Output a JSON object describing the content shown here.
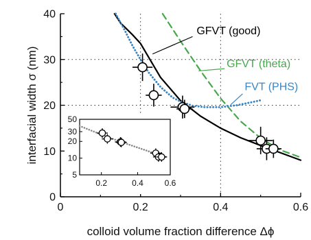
{
  "chart_data": {
    "type": "scatter",
    "xlabel": "colloid volume fraction difference Δϕ",
    "ylabel": "interfacial width σ (nm)",
    "xlim": [
      0,
      0.6
    ],
    "ylim": [
      0,
      40
    ],
    "xticks": [
      "0",
      "0.2",
      "0.4",
      "0.6"
    ],
    "yticks": [
      "0",
      "10",
      "20",
      "30",
      "40"
    ],
    "grid": "dotted guide lines at x = 0.2 and x = 0.4; y = 20 and y = 30",
    "series": [
      {
        "name": "",
        "kind": "points",
        "points": [
          {
            "x": 0.205,
            "y": 28.3,
            "xerr": 0.025,
            "yerr": 3.0
          },
          {
            "x": 0.233,
            "y": 22.2,
            "xerr": 0.02,
            "yerr": 2.5
          },
          {
            "x": 0.305,
            "y": 19.6,
            "xerr": 0.03,
            "yerr": 2.5
          },
          {
            "x": 0.31,
            "y": 19.2,
            "xerr": 0.02,
            "yerr": 2.0
          },
          {
            "x": 0.5,
            "y": 12.3,
            "xerr": 0.03,
            "yerr": 3.0
          },
          {
            "x": 0.515,
            "y": 10.5,
            "xerr": 0.025,
            "yerr": 2.5
          },
          {
            "x": 0.532,
            "y": 10.5,
            "xerr": 0.02,
            "yerr": 2.0
          }
        ],
        "color": "#000000"
      },
      {
        "name": "GFVT (good)",
        "kind": "solid-line",
        "color": "#000000",
        "x": [
          0.135,
          0.15,
          0.18,
          0.2,
          0.25,
          0.3,
          0.35,
          0.4,
          0.45,
          0.5,
          0.55,
          0.6
        ],
        "y": [
          40.0,
          38.0,
          35.4,
          33.5,
          26.1,
          21.0,
          17.6,
          15.0,
          12.9,
          11.2,
          9.6,
          8.0
        ]
      },
      {
        "name": "GFVT (theta)",
        "kind": "dashed-line",
        "color": "#45a84a",
        "x": [
          0.255,
          0.3,
          0.35,
          0.4,
          0.45,
          0.5,
          0.55,
          0.6
        ],
        "y": [
          40.0,
          34.0,
          27.5,
          21.5,
          16.5,
          12.8,
          10.2,
          8.6
        ]
      },
      {
        "name": "FVT (PHS)",
        "kind": "dotted-line",
        "color": "#3b86c4",
        "x": [
          0.138,
          0.16,
          0.18,
          0.2,
          0.22,
          0.25,
          0.28,
          0.3,
          0.33,
          0.36,
          0.4,
          0.44,
          0.48,
          0.5
        ],
        "y": [
          40.0,
          36.5,
          33.0,
          30.0,
          27.2,
          24.0,
          21.7,
          20.8,
          19.9,
          19.6,
          19.6,
          20.0,
          20.7,
          21.1
        ]
      }
    ],
    "annotations": [
      {
        "text": "GFVT (good)",
        "color": "#000000",
        "at": {
          "x": 0.34,
          "y": 35.5
        }
      },
      {
        "text": "GFVT (theta)",
        "color": "#45a84a",
        "at": {
          "x": 0.415,
          "y": 28.3
        }
      },
      {
        "text": "FVT (PHS)",
        "color": "#3b86c4",
        "at": {
          "x": 0.46,
          "y": 23.3
        }
      }
    ],
    "inset": {
      "type": "scatter",
      "yscale": "log",
      "xlim": [
        0.08,
        0.58
      ],
      "ylim": [
        5,
        50
      ],
      "xticks": [
        "0.2",
        "0.4",
        "0.6"
      ],
      "yticks": [
        "5",
        "10",
        "20",
        "30",
        "50"
      ],
      "points": [
        {
          "x": 0.205,
          "y": 28.3
        },
        {
          "x": 0.233,
          "y": 22.2
        },
        {
          "x": 0.305,
          "y": 19.6
        },
        {
          "x": 0.31,
          "y": 19.2
        },
        {
          "x": 0.5,
          "y": 12.3
        },
        {
          "x": 0.515,
          "y": 10.5
        },
        {
          "x": 0.532,
          "y": 10.5
        }
      ],
      "fit": {
        "x": [
          0.08,
          0.2,
          0.3,
          0.4,
          0.5,
          0.56
        ],
        "y": [
          38.0,
          26.5,
          20.0,
          15.5,
          12.0,
          10.4
        ]
      }
    }
  }
}
